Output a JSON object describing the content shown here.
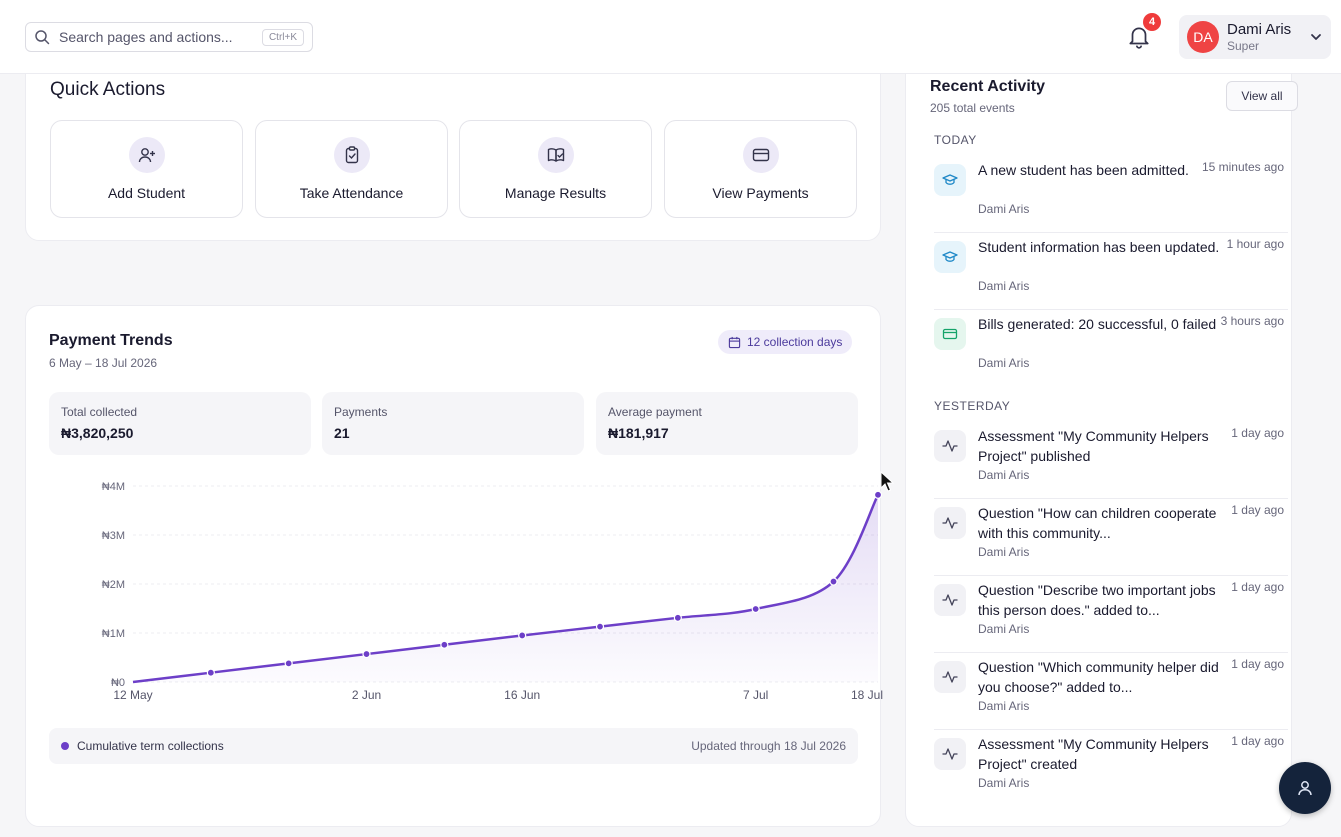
{
  "header": {
    "search_placeholder": "Search pages and actions...",
    "search_shortcut": "Ctrl+K",
    "notifications_count": "4",
    "user": {
      "initials": "DA",
      "name": "Dami Aris",
      "role": "Super"
    }
  },
  "quick_actions": {
    "title": "Quick Actions",
    "items": [
      {
        "label": "Add Student",
        "icon": "user-plus-icon"
      },
      {
        "label": "Take Attendance",
        "icon": "clipboard-check-icon"
      },
      {
        "label": "Manage Results",
        "icon": "book-check-icon"
      },
      {
        "label": "View Payments",
        "icon": "credit-card-icon"
      }
    ]
  },
  "payment_trends": {
    "title": "Payment Trends",
    "date_range": "6 May – 18 Jul 2026",
    "collection_days": "12 collection days",
    "stats": [
      {
        "label": "Total collected",
        "value": "₦3,820,250"
      },
      {
        "label": "Payments",
        "value": "21"
      },
      {
        "label": "Average payment",
        "value": "₦181,917"
      }
    ],
    "legend_label": "Cumulative term collections",
    "updated": "Updated through 18 Jul 2026"
  },
  "chart_data": {
    "type": "area",
    "series": [
      {
        "name": "Cumulative term collections",
        "color": "#6d3fc8",
        "points": [
          {
            "date": "2026-05-12",
            "value": 0
          },
          {
            "date": "2026-05-19",
            "value": 190000
          },
          {
            "date": "2026-05-26",
            "value": 380000
          },
          {
            "date": "2026-06-02",
            "value": 570000
          },
          {
            "date": "2026-06-09",
            "value": 760000
          },
          {
            "date": "2026-06-16",
            "value": 950000
          },
          {
            "date": "2026-06-23",
            "value": 1130000
          },
          {
            "date": "2026-06-30",
            "value": 1310000
          },
          {
            "date": "2026-07-07",
            "value": 1490000
          },
          {
            "date": "2026-07-14",
            "value": 2050000
          },
          {
            "date": "2026-07-18",
            "value": 3820250
          }
        ]
      }
    ],
    "x_ticks": [
      {
        "date": "2026-05-12",
        "label": "12 May"
      },
      {
        "date": "2026-06-02",
        "label": "2 Jun"
      },
      {
        "date": "2026-06-16",
        "label": "16 Jun"
      },
      {
        "date": "2026-07-07",
        "label": "7 Jul"
      },
      {
        "date": "2026-07-18",
        "label": "18 Jul"
      }
    ],
    "y_ticks": [
      {
        "value": 0,
        "label": "₦0"
      },
      {
        "value": 1000000,
        "label": "₦1M"
      },
      {
        "value": 2000000,
        "label": "₦2M"
      },
      {
        "value": 3000000,
        "label": "₦3M"
      },
      {
        "value": 4000000,
        "label": "₦4M"
      }
    ],
    "xlim": [
      "2026-05-12",
      "2026-07-18"
    ],
    "ylim": [
      0,
      4000000
    ],
    "grid": true,
    "title": "",
    "xlabel": "",
    "ylabel": ""
  },
  "recent_activity": {
    "title": "Recent Activity",
    "subtitle": "205 total events",
    "view_all": "View all",
    "groups": [
      {
        "label": "TODAY",
        "items": [
          {
            "icon": "graduation-cap-icon",
            "text": "A new student has been admitted.",
            "user": "Dami Aris",
            "time": "15 minutes ago"
          },
          {
            "icon": "graduation-cap-icon",
            "text": "Student information has been updated.",
            "user": "Dami Aris",
            "time": "1 hour ago"
          },
          {
            "icon": "credit-card-icon",
            "text": "Bills generated: 20 successful, 0 failed",
            "user": "Dami Aris",
            "time": "3 hours ago"
          }
        ]
      },
      {
        "label": "YESTERDAY",
        "items": [
          {
            "icon": "activity-icon",
            "text": "Assessment \"My Community Helpers Project\" published",
            "user": "Dami Aris",
            "time": "1 day ago"
          },
          {
            "icon": "activity-icon",
            "text": "Question \"How can children cooperate with this community...",
            "user": "Dami Aris",
            "time": "1 day ago"
          },
          {
            "icon": "activity-icon",
            "text": "Question \"Describe two important jobs this person does.\" added to...",
            "user": "Dami Aris",
            "time": "1 day ago"
          },
          {
            "icon": "activity-icon",
            "text": "Question \"Which community helper did you choose?\" added to...",
            "user": "Dami Aris",
            "time": "1 day ago"
          },
          {
            "icon": "activity-icon",
            "text": "Assessment \"My Community Helpers Project\" created",
            "user": "Dami Aris",
            "time": "1 day ago"
          }
        ]
      }
    ]
  }
}
